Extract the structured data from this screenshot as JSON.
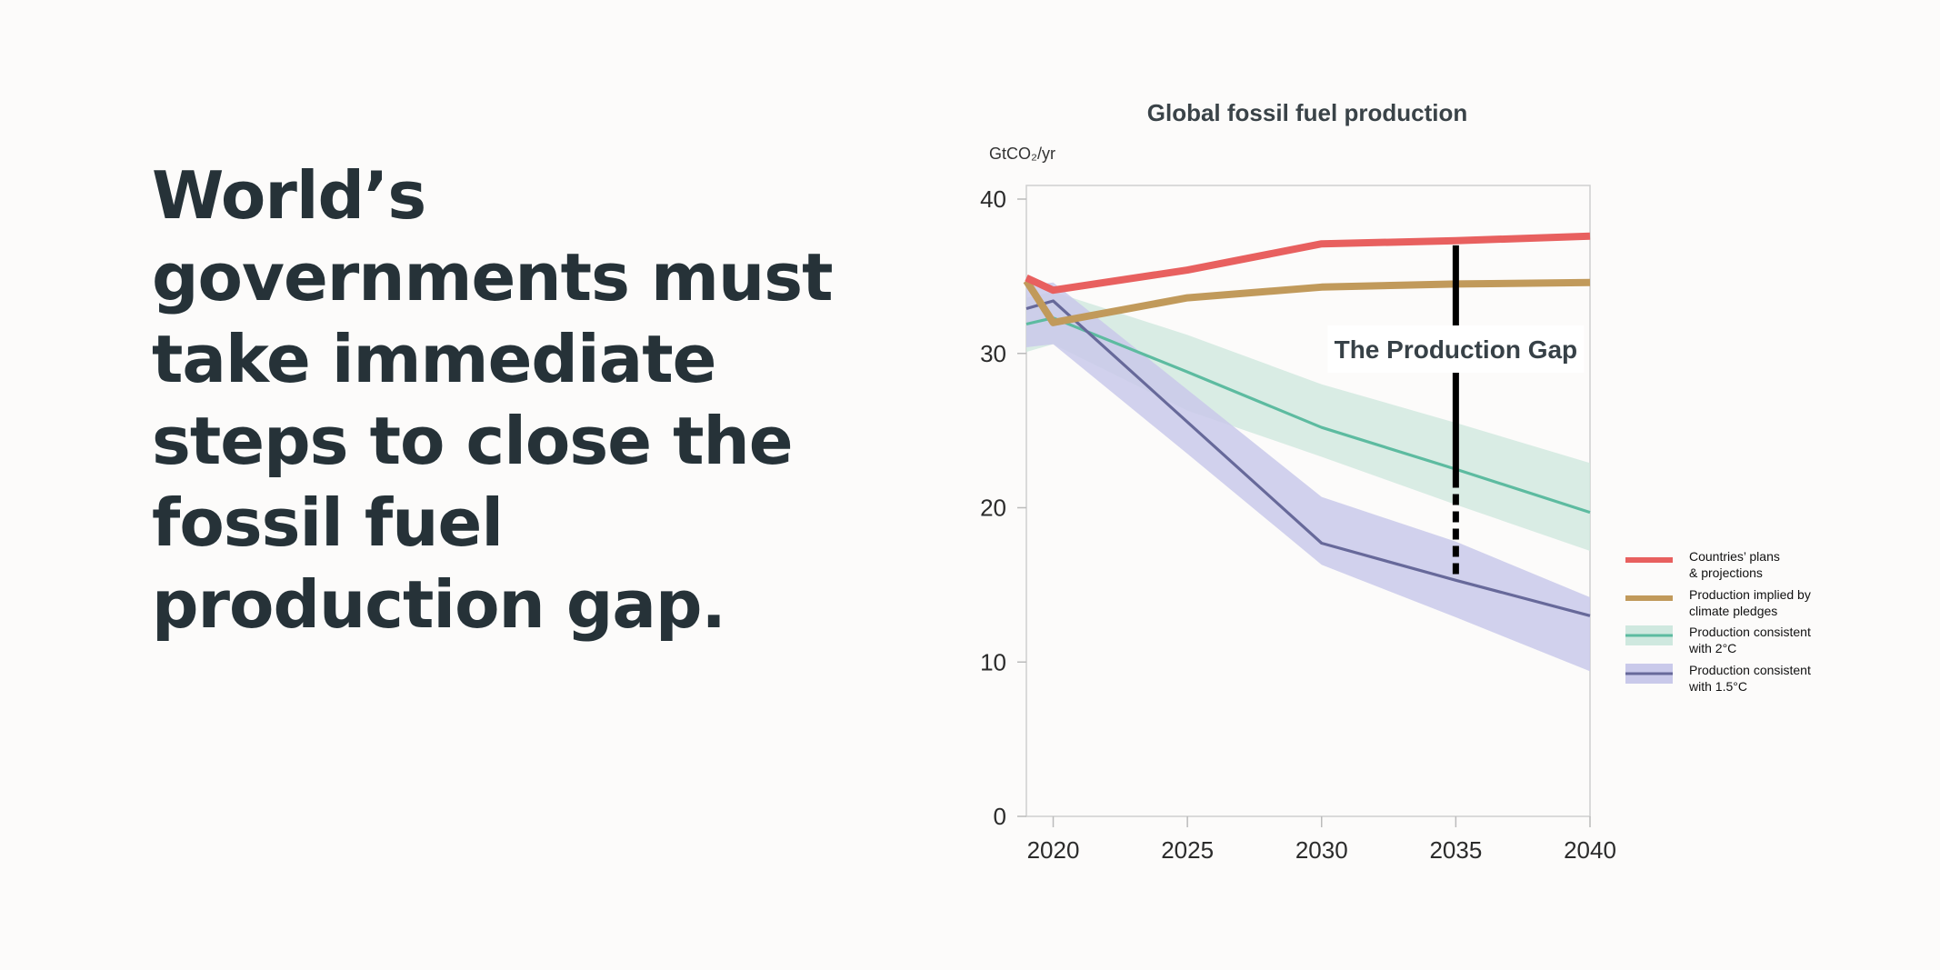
{
  "headline": "World’s governments must take immediate steps to close the fossil fuel production gap.",
  "chart_data": {
    "type": "line",
    "title": "Global fossil fuel production",
    "ylabel": "GtCO₂/yr",
    "xlabel": "",
    "xlim": [
      2019,
      2040
    ],
    "ylim": [
      0,
      40
    ],
    "x_ticks": [
      2020,
      2025,
      2030,
      2035,
      2040
    ],
    "y_ticks": [
      0,
      10,
      20,
      30,
      40
    ],
    "grid": false,
    "legend_position": "right",
    "annotation": {
      "text": "The Production Gap",
      "x": 2035,
      "y_top": 37.0,
      "y_solid_bottom": 22.0,
      "y_bottom": 15.5
    },
    "series": [
      {
        "name": "Countries’ plans & projections",
        "legend_lines": [
          "Countries’ plans",
          "& projections"
        ],
        "color": "#e8605f",
        "style": "thick",
        "points": [
          [
            2019,
            34.9
          ],
          [
            2020,
            34.1
          ],
          [
            2025,
            35.4
          ],
          [
            2030,
            37.1
          ],
          [
            2035,
            37.3
          ],
          [
            2040,
            37.6
          ]
        ]
      },
      {
        "name": "Production implied by climate pledges",
        "legend_lines": [
          "Production implied by",
          " climate pledges"
        ],
        "color": "#c19a5b",
        "style": "thick",
        "points": [
          [
            2019,
            34.7
          ],
          [
            2020,
            32.0
          ],
          [
            2025,
            33.6
          ],
          [
            2030,
            34.3
          ],
          [
            2035,
            34.5
          ],
          [
            2040,
            34.6
          ]
        ]
      },
      {
        "name": "Production consistent with 2°C",
        "legend_lines": [
          "Production consistent",
          "with 2°C"
        ],
        "color": "#5dbba0",
        "band_color": "#cfe8df",
        "style": "thin",
        "points": [
          [
            2019,
            31.9
          ],
          [
            2020,
            32.3
          ],
          [
            2025,
            28.8
          ],
          [
            2030,
            25.2
          ],
          [
            2035,
            22.5
          ],
          [
            2040,
            19.7
          ]
        ],
        "band_upper": [
          [
            2019,
            33.6
          ],
          [
            2020,
            34.0
          ],
          [
            2025,
            31.2
          ],
          [
            2030,
            28.0
          ],
          [
            2035,
            25.5
          ],
          [
            2040,
            22.9
          ]
        ],
        "band_lower": [
          [
            2019,
            30.1
          ],
          [
            2020,
            30.6
          ],
          [
            2025,
            26.3
          ],
          [
            2030,
            23.3
          ],
          [
            2035,
            20.2
          ],
          [
            2040,
            17.2
          ]
        ]
      },
      {
        "name": "Production consistent with 1.5°C",
        "legend_lines": [
          "Production consistent",
          "with 1.5°C"
        ],
        "color": "#67699a",
        "band_color": "#c9c9ea",
        "style": "thin",
        "points": [
          [
            2019,
            32.9
          ],
          [
            2020,
            33.4
          ],
          [
            2030,
            17.7
          ],
          [
            2035,
            15.3
          ],
          [
            2040,
            13.0
          ]
        ],
        "band_upper": [
          [
            2019,
            34.4
          ],
          [
            2020,
            34.6
          ],
          [
            2030,
            20.7
          ],
          [
            2035,
            17.8
          ],
          [
            2040,
            14.2
          ]
        ],
        "band_lower": [
          [
            2019,
            30.4
          ],
          [
            2020,
            30.6
          ],
          [
            2025,
            23.5
          ],
          [
            2030,
            16.3
          ],
          [
            2035,
            12.9
          ],
          [
            2040,
            9.4
          ]
        ]
      }
    ]
  }
}
